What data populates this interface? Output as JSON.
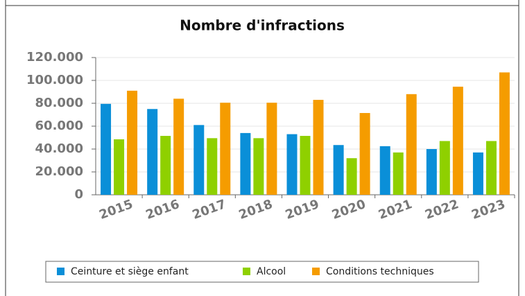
{
  "chart_data": {
    "type": "bar",
    "title": "Nombre d'infractions",
    "categories": [
      "2015",
      "2016",
      "2017",
      "2018",
      "2019",
      "2020",
      "2021",
      "2022",
      "2023"
    ],
    "series": [
      {
        "name": "Ceinture et siège enfant",
        "color": "#0a8fd8",
        "values": [
          79500,
          75000,
          61000,
          54000,
          53000,
          43500,
          42500,
          40000,
          37000
        ]
      },
      {
        "name": "Alcool",
        "color": "#8fd000",
        "values": [
          48500,
          51500,
          49500,
          49500,
          51500,
          32000,
          37000,
          47000,
          47000
        ]
      },
      {
        "name": "Conditions techniques",
        "color": "#f59c00",
        "values": [
          91000,
          84000,
          80500,
          80500,
          83000,
          71500,
          88000,
          94500,
          107000
        ]
      }
    ],
    "ylim": [
      0,
      120000
    ],
    "yticks": [
      0,
      {
        "value": 20000,
        "label": "20.000"
      },
      {
        "value": 40000,
        "label": "40.000"
      },
      {
        "value": 60000,
        "label": "60.000"
      },
      {
        "value": 80000,
        "label": "80.000"
      },
      {
        "value": 100000,
        "label": "100.000"
      },
      {
        "value": 120000,
        "label": "120.000"
      }
    ],
    "grid": true
  }
}
